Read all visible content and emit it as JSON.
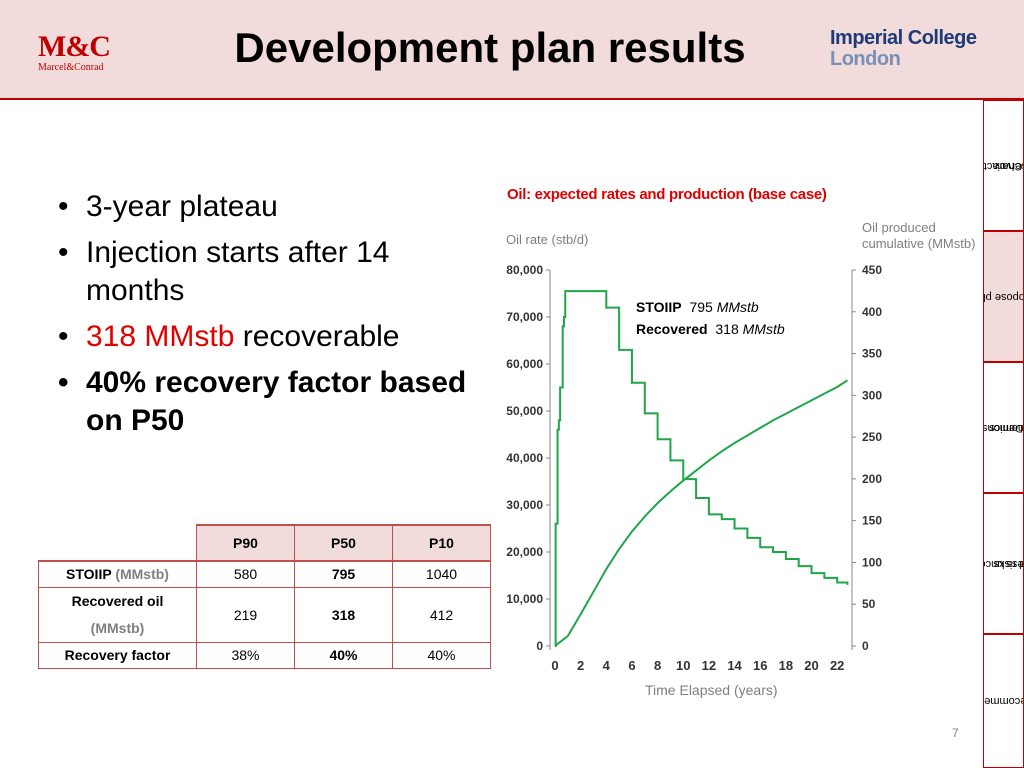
{
  "header": {
    "logo_left": {
      "name": "M&C",
      "sub": "Marcel&Conrad"
    },
    "title": "Development plan results",
    "logo_right": {
      "line1": "Imperial College",
      "line2": "London"
    }
  },
  "tabs": [
    {
      "label_lines": [
        "Characterise",
        "reservoir"
      ],
      "active": false
    },
    {
      "label_lines": [
        "Propose plan"
      ],
      "active": true
    },
    {
      "label_lines": [
        "Demonstrate",
        "economics"
      ],
      "active": false
    },
    {
      "label_lines": [
        "Assess uncertainties",
        "and risks"
      ],
      "active": false
    },
    {
      "label_lines": [
        "Recommend"
      ],
      "active": false
    }
  ],
  "bullets": {
    "b1": "3-year plateau",
    "b2": "Injection starts after 14 months",
    "b3_red": "318 MMstb",
    "b3_rest": " recoverable",
    "b4": "40% recovery factor based on P50"
  },
  "table": {
    "headers": [
      "P90",
      "P50",
      "P10"
    ],
    "rows": [
      {
        "label": "STOIIP",
        "unit": "(MMstb)",
        "values": [
          "580",
          "795",
          "1040"
        ]
      },
      {
        "label": "Recovered oil",
        "unit": "(MMstb)",
        "values": [
          "219",
          "318",
          "412"
        ]
      },
      {
        "label": "Recovery factor",
        "unit": "",
        "values": [
          "38%",
          "40%",
          "40%"
        ]
      }
    ]
  },
  "chart_data": {
    "type": "line",
    "title": "Oil: expected rates and production (base case)",
    "xlabel": "Time Elapsed  (years)",
    "ylabel": "Oil rate (stb/d)",
    "y2label": "Oil produced cumulative  (MMstb)",
    "xlim": [
      0,
      23
    ],
    "ylim": [
      0,
      80000
    ],
    "y2lim": [
      0,
      450
    ],
    "x_ticks": [
      0,
      2,
      4,
      6,
      8,
      10,
      12,
      14,
      16,
      18,
      20,
      22
    ],
    "y_ticks": [
      0,
      10000,
      20000,
      30000,
      40000,
      50000,
      60000,
      70000,
      80000
    ],
    "y_tick_labels": [
      "0",
      "10,000",
      "20,000",
      "30,000",
      "40,000",
      "50,000",
      "60,000",
      "70,000",
      "80,000"
    ],
    "y2_ticks": [
      0,
      50,
      100,
      150,
      200,
      250,
      300,
      350,
      400,
      450
    ],
    "color": "#1fa64a",
    "series": [
      {
        "axis": "left",
        "x": [
          0,
          0.05,
          0.1,
          0.2,
          0.3,
          0.4,
          0.5,
          0.6,
          0.7,
          0.8,
          1.2,
          2.0,
          3.0,
          3.5,
          4.0,
          5.0,
          6.0,
          7.0,
          8.0,
          9.0,
          10.0,
          11.0,
          12.0,
          13.0,
          14.0,
          15.0,
          16.0,
          17.0,
          18.0,
          19.0,
          20.0,
          21.0,
          22.0,
          22.8
        ],
        "y": [
          0,
          26000,
          26000,
          46000,
          48000,
          55000,
          55000,
          68000,
          70000,
          75500,
          75500,
          75500,
          75500,
          75500,
          72000,
          63000,
          56000,
          49500,
          44000,
          39500,
          35500,
          31500,
          28000,
          27000,
          25000,
          23000,
          21000,
          20000,
          18500,
          17000,
          15500,
          14500,
          13500,
          13000
        ]
      },
      {
        "axis": "right",
        "x": [
          0,
          1,
          2,
          3,
          4,
          5,
          6,
          7,
          8,
          9,
          10,
          11,
          12,
          13,
          14,
          15,
          16,
          17,
          18,
          19,
          20,
          21,
          22,
          22.8
        ],
        "y": [
          0,
          12,
          38,
          65,
          92,
          116,
          137,
          155,
          171,
          185,
          198,
          210,
          222,
          233,
          243,
          252,
          261,
          270,
          278,
          286,
          294,
          302,
          310,
          318
        ]
      }
    ],
    "annotation": {
      "line1_bold": "STOIIP",
      "line1_value": "795",
      "line1_unit": "MMstb",
      "line2_bold": "Recovered",
      "line2_value": "318",
      "line2_unit": "MMstb"
    }
  },
  "page_number": "7"
}
